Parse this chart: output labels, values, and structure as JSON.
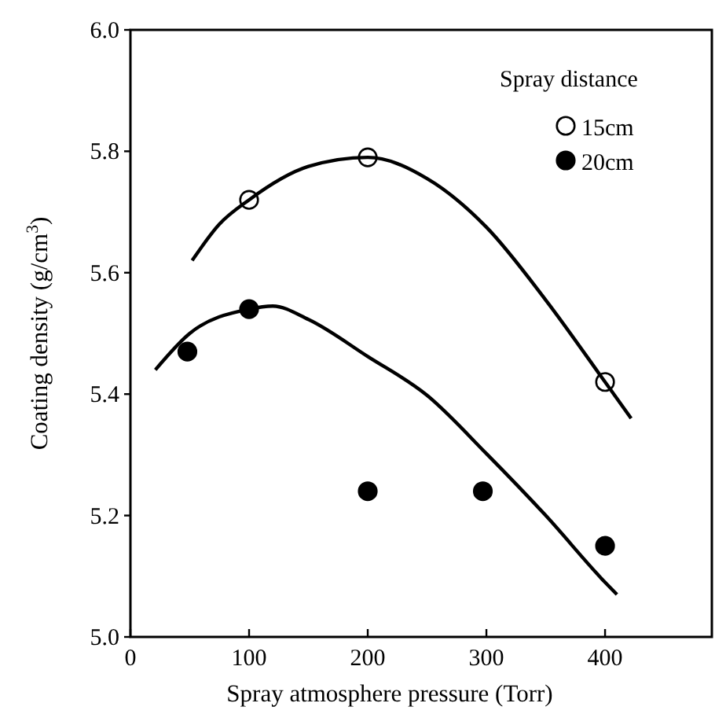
{
  "chart_data": {
    "type": "scatter",
    "xlabel": "Spray atmosphere pressure (Torr)",
    "ylabel": "Coating density (g/cm$^{3}$)",
    "legend_title": "Spray distance",
    "legend": "top right",
    "xlim": [
      0,
      490
    ],
    "ylim": [
      5.0,
      6.0
    ],
    "xticks": [
      0,
      100,
      200,
      300,
      400
    ],
    "yticks": [
      {
        "value": 5.0,
        "label": "5.0"
      },
      {
        "value": 5.2,
        "label": "5.2"
      },
      {
        "value": 5.4,
        "label": "5.4"
      },
      {
        "value": 5.6,
        "label": "5.6"
      },
      {
        "value": 5.8,
        "label": "5.8"
      },
      {
        "value": 6.0,
        "label": "6.0"
      }
    ],
    "series": [
      {
        "name": "15cm",
        "type": "scatter",
        "marker": "circle",
        "color": "#ffffff",
        "x": [
          100,
          200,
          400
        ],
        "values": [
          5.72,
          5.79,
          5.42
        ]
      },
      {
        "name": "20cm",
        "type": "scatter",
        "marker": "circle",
        "color": "#000000",
        "x": [
          48,
          100,
          200,
          297,
          400
        ],
        "values": [
          5.47,
          5.54,
          5.24,
          5.24,
          5.15
        ]
      },
      {
        "type": "line",
        "marker": "none",
        "color": "#000000",
        "x": [
          52,
          75,
          100,
          150,
          200,
          250,
          300,
          350,
          400,
          422
        ],
        "values": [
          5.62,
          5.68,
          5.72,
          5.775,
          5.79,
          5.755,
          5.675,
          5.555,
          5.42,
          5.36
        ]
      },
      {
        "type": "line",
        "marker": "none",
        "color": "#000000",
        "x": [
          21,
          50,
          100,
          120,
          150,
          200,
          250,
          300,
          350,
          400,
          410
        ],
        "values": [
          5.44,
          5.5,
          5.54,
          5.545,
          5.523,
          5.462,
          5.398,
          5.302,
          5.2,
          5.09,
          5.07
        ]
      }
    ]
  }
}
